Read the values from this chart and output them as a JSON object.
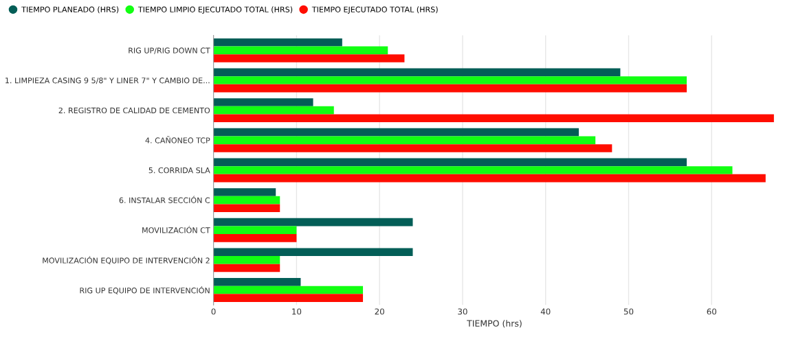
{
  "chart_data": {
    "type": "bar",
    "orientation": "horizontal",
    "xlabel": "TIEMPO (hrs)",
    "categories": [
      "RIG UP/RIG DOWN CT",
      "1. LIMPIEZA CASING 9 5/8\" Y LINER 7\" Y CAMBIO DE...",
      "2. REGISTRO DE CALIDAD DE CEMENTO",
      "4. CAÑONEO TCP",
      "5. CORRIDA SLA",
      "6. INSTALAR SECCIÓN C",
      "MOVILIZACIÓN CT",
      "MOVILIZACIÓN EQUIPO DE INTERVENCIÓN 2",
      "RIG UP EQUIPO DE INTERVENCIÓN"
    ],
    "series": [
      {
        "name": "TIEMPO PLANEADO (HRS)",
        "color": "#035e57",
        "values": [
          15.5,
          49,
          12,
          44,
          57,
          7.5,
          24,
          24,
          10.5
        ]
      },
      {
        "name": "TIEMPO LIMPIO EJECUTADO TOTAL (HRS)",
        "color": "#12ff12",
        "values": [
          21,
          57,
          14.5,
          46,
          62.5,
          8,
          10,
          8,
          18
        ]
      },
      {
        "name": "TIEMPO EJECUTADO TOTAL (HRS)",
        "color": "#ff0d00",
        "values": [
          23,
          57,
          67.5,
          48,
          66.5,
          8,
          10,
          8,
          18
        ]
      }
    ],
    "xlim": [
      0,
      67.7
    ],
    "xticks": [
      0,
      10,
      20,
      30,
      40,
      50,
      60
    ],
    "grid": "x",
    "legend": "top left"
  }
}
